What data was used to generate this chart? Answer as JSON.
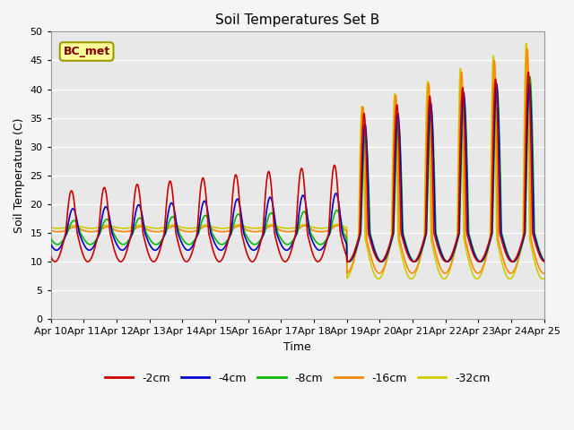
{
  "title": "Soil Temperatures Set B",
  "xlabel": "Time",
  "ylabel": "Soil Temperature (C)",
  "ylim": [
    0,
    50
  ],
  "yticks": [
    0,
    5,
    10,
    15,
    20,
    25,
    30,
    35,
    40,
    45,
    50
  ],
  "x_labels": [
    "Apr 10",
    "Apr 11",
    "Apr 12",
    "Apr 13",
    "Apr 14",
    "Apr 15",
    "Apr 16",
    "Apr 17",
    "Apr 18",
    "Apr 19",
    "Apr 20",
    "Apr 21",
    "Apr 22",
    "Apr 23",
    "Apr 24",
    "Apr 25"
  ],
  "legend_labels": [
    "-2cm",
    "-4cm",
    "-8cm",
    "-16cm",
    "-32cm"
  ],
  "legend_colors": [
    "#cc0000",
    "#0000cc",
    "#00bb00",
    "#ff8800",
    "#cccc00"
  ],
  "annotation_text": "BC_met",
  "annotation_bbox_facecolor": "#ffff99",
  "annotation_bbox_edgecolor": "#999900",
  "background_color": "#e8e8e8",
  "grid_color": "#ffffff",
  "title_fontsize": 11,
  "axis_label_fontsize": 9,
  "tick_fontsize": 8
}
